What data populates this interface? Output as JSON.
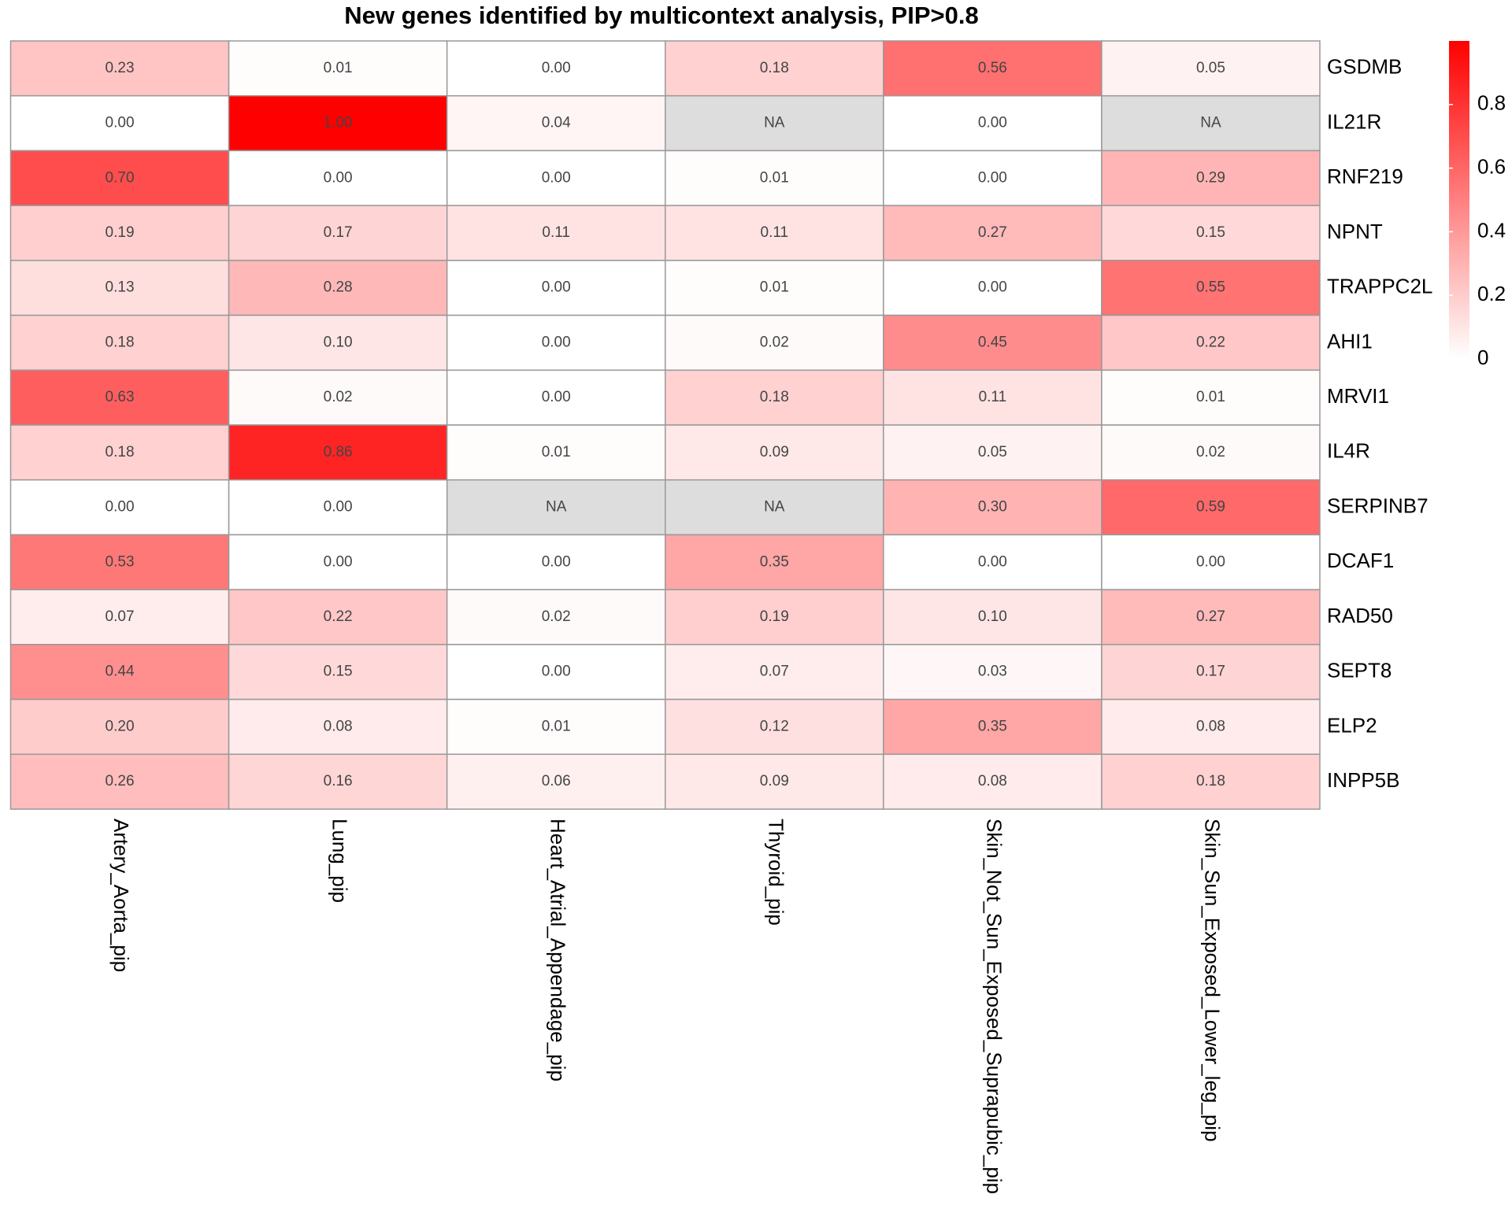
{
  "chart_data": {
    "type": "heatmap",
    "title": "New genes identified by multicontext analysis, PIP>0.8",
    "columns": [
      "Artery_Aorta_pip",
      "Lung_pip",
      "Heart_Atrial_Appendage_pip",
      "Thyroid_pip",
      "Skin_Not_Sun_Exposed_Suprapubic_pip",
      "Skin_Sun_Exposed_Lower_leg_pip"
    ],
    "rows": [
      "GSDMB",
      "IL21R",
      "RNF219",
      "NPNT",
      "TRAPPC2L",
      "AHI1",
      "MRVI1",
      "IL4R",
      "SERPINB7",
      "DCAF1",
      "RAD50",
      "SEPT8",
      "ELP2",
      "INPP5B"
    ],
    "values": [
      [
        0.23,
        0.01,
        0.0,
        0.18,
        0.56,
        0.05
      ],
      [
        0.0,
        1.0,
        0.04,
        null,
        0.0,
        null
      ],
      [
        0.7,
        0.0,
        0.0,
        0.01,
        0.0,
        0.29
      ],
      [
        0.19,
        0.17,
        0.11,
        0.11,
        0.27,
        0.15
      ],
      [
        0.13,
        0.28,
        0.0,
        0.01,
        0.0,
        0.55
      ],
      [
        0.18,
        0.1,
        0.0,
        0.02,
        0.45,
        0.22
      ],
      [
        0.63,
        0.02,
        0.0,
        0.18,
        0.11,
        0.01
      ],
      [
        0.18,
        0.86,
        0.01,
        0.09,
        0.05,
        0.02
      ],
      [
        0.0,
        0.0,
        null,
        null,
        0.3,
        0.59
      ],
      [
        0.53,
        0.0,
        0.0,
        0.35,
        0.0,
        0.0
      ],
      [
        0.07,
        0.22,
        0.02,
        0.19,
        0.1,
        0.27
      ],
      [
        0.44,
        0.15,
        0.0,
        0.07,
        0.03,
        0.17
      ],
      [
        0.2,
        0.08,
        0.01,
        0.12,
        0.35,
        0.08
      ],
      [
        0.26,
        0.16,
        0.06,
        0.09,
        0.08,
        0.18
      ]
    ],
    "value_labels": [
      [
        "0.23",
        "0.01",
        "0.00",
        "0.18",
        "0.56",
        "0.05"
      ],
      [
        "0.00",
        "1.00",
        "0.04",
        "NA",
        "0.00",
        "NA"
      ],
      [
        "0.70",
        "0.00",
        "0.00",
        "0.01",
        "0.00",
        "0.29"
      ],
      [
        "0.19",
        "0.17",
        "0.11",
        "0.11",
        "0.27",
        "0.15"
      ],
      [
        "0.13",
        "0.28",
        "0.00",
        "0.01",
        "0.00",
        "0.55"
      ],
      [
        "0.18",
        "0.10",
        "0.00",
        "0.02",
        "0.45",
        "0.22"
      ],
      [
        "0.63",
        "0.02",
        "0.00",
        "0.18",
        "0.11",
        "0.01"
      ],
      [
        "0.18",
        "0.86",
        "0.01",
        "0.09",
        "0.05",
        "0.02"
      ],
      [
        "0.00",
        "0.00",
        "NA",
        "NA",
        "0.30",
        "0.59"
      ],
      [
        "0.53",
        "0.00",
        "0.00",
        "0.35",
        "0.00",
        "0.00"
      ],
      [
        "0.07",
        "0.22",
        "0.02",
        "0.19",
        "0.10",
        "0.27"
      ],
      [
        "0.44",
        "0.15",
        "0.00",
        "0.07",
        "0.03",
        "0.17"
      ],
      [
        "0.20",
        "0.08",
        "0.01",
        "0.12",
        "0.35",
        "0.08"
      ],
      [
        "0.26",
        "0.16",
        "0.06",
        "0.09",
        "0.08",
        "0.18"
      ]
    ],
    "color": "#ff0000",
    "na_color": "#dddddd",
    "zlim": [
      0,
      1
    ],
    "zticks": [
      0,
      0.2,
      0.4,
      0.6,
      0.8
    ]
  }
}
